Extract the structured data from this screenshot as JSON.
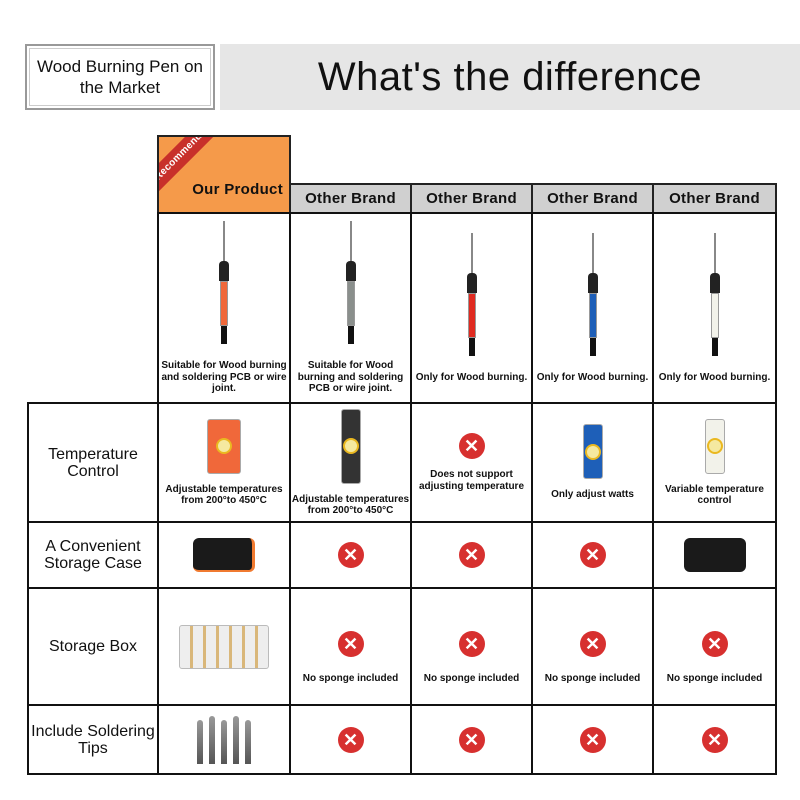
{
  "header": {
    "left_label": "Wood Burning Pen on the Market",
    "title": "What's the difference"
  },
  "columns": [
    {
      "name": "Our Product",
      "badge": "Recommend",
      "pen_color": "#f0683a",
      "use": "Suitable for Wood burning and soldering PCB or wire joint.",
      "temperature": "Adjustable temperatures from 200°to 450°C",
      "case": true,
      "box": true,
      "box_note": "",
      "tips": true
    },
    {
      "name": "Other Brand",
      "pen_color": "#8a8f8c",
      "use": "Suitable for Wood burning and soldering PCB or wire joint.",
      "temperature": "Adjustable temperatures from 200°to 450°C",
      "case": false,
      "box": false,
      "box_note": "No sponge included",
      "tips": false
    },
    {
      "name": "Other Brand",
      "pen_color": "#e02a20",
      "use": "Only for Wood burning.",
      "temperature": "Does not support adjusting temperature",
      "case": false,
      "box": false,
      "box_note": "No sponge included",
      "tips": false
    },
    {
      "name": "Other Brand",
      "pen_color": "#1e5fb8",
      "use": "Only for Wood burning.",
      "temperature": "Only adjust watts",
      "case": false,
      "box": false,
      "box_note": "No sponge included",
      "tips": false
    },
    {
      "name": "Other Brand",
      "pen_color": "#f2f2ea",
      "use": "Only for Wood burning.",
      "temperature": "Variable temperature control",
      "case": true,
      "box": false,
      "box_note": "No sponge included",
      "tips": false
    }
  ],
  "rows": {
    "temperature": "Temperature Control",
    "case": "A Convenient Storage Case",
    "box": "Storage Box",
    "tips": "Include Soldering Tips"
  },
  "icons": {
    "no": "x-circle-icon"
  },
  "colors": {
    "accent": "#f59a4a",
    "ribbon": "#c8302a",
    "no": "#d7302f"
  }
}
